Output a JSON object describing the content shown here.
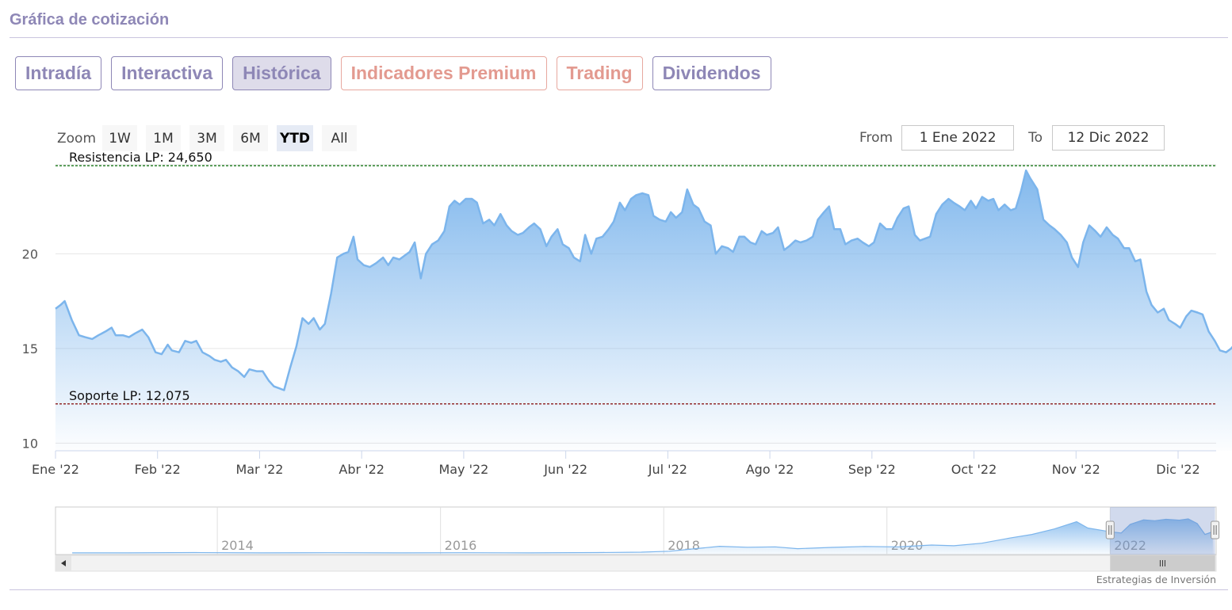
{
  "header": {
    "title": "Gráfica de cotización"
  },
  "tabs": [
    {
      "label": "Intradía",
      "state": "normal"
    },
    {
      "label": "Interactiva",
      "state": "normal"
    },
    {
      "label": "Histórica",
      "state": "active"
    },
    {
      "label": "Indicadores Premium",
      "state": "premium"
    },
    {
      "label": "Trading",
      "state": "premium"
    },
    {
      "label": "Dividendos",
      "state": "normal"
    }
  ],
  "zoom": {
    "label": "Zoom",
    "buttons": [
      "1W",
      "1M",
      "3M",
      "6M",
      "YTD",
      "All"
    ],
    "selected": "YTD"
  },
  "range": {
    "from_label": "From",
    "from_value": "1 Ene 2022",
    "to_label": "To",
    "to_value": "12 Dic 2022"
  },
  "credit": "Estrategias de Inversión",
  "colors": {
    "accent": "#8e87b6",
    "premium": "#e39a90",
    "series_line": "#7cb5ec",
    "resistance": "#1a7a1a",
    "support": "#8b1a1a"
  },
  "chart_data": {
    "type": "area",
    "x_unit": "month (0 = 1 Ene 2022)",
    "ylim": [
      9.6,
      24.7
    ],
    "yticks": [
      10,
      15,
      20
    ],
    "grid": true,
    "xtick_labels": [
      "Ene '22",
      "Feb '22",
      "Mar '22",
      "Abr '22",
      "May '22",
      "Jun '22",
      "Jul '22",
      "Ago '22",
      "Sep '22",
      "Oct '22",
      "Nov '22",
      "Dic '22"
    ],
    "reference_lines": [
      {
        "label": "Resistencia LP: 24,650",
        "value": 24.65
      },
      {
        "label": "Soporte LP: 12,075",
        "value": 12.075
      }
    ],
    "series": [
      {
        "values": [
          [
            0.0,
            17.1
          ],
          [
            0.05,
            17.3
          ],
          [
            0.09,
            17.5
          ],
          [
            0.16,
            16.5
          ],
          [
            0.23,
            15.7
          ],
          [
            0.29,
            15.6
          ],
          [
            0.36,
            15.5
          ],
          [
            0.42,
            15.7
          ],
          [
            0.49,
            15.9
          ],
          [
            0.55,
            16.1
          ],
          [
            0.59,
            15.7
          ],
          [
            0.66,
            15.7
          ],
          [
            0.72,
            15.6
          ],
          [
            0.78,
            15.8
          ],
          [
            0.85,
            16.0
          ],
          [
            0.91,
            15.6
          ],
          [
            0.98,
            14.8
          ],
          [
            1.04,
            14.7
          ],
          [
            1.1,
            15.2
          ],
          [
            1.14,
            14.9
          ],
          [
            1.21,
            14.8
          ],
          [
            1.27,
            15.4
          ],
          [
            1.33,
            15.3
          ],
          [
            1.38,
            15.4
          ],
          [
            1.44,
            14.8
          ],
          [
            1.51,
            14.6
          ],
          [
            1.56,
            14.4
          ],
          [
            1.62,
            14.3
          ],
          [
            1.67,
            14.4
          ],
          [
            1.73,
            14.0
          ],
          [
            1.79,
            13.8
          ],
          [
            1.85,
            13.5
          ],
          [
            1.9,
            13.9
          ],
          [
            1.97,
            13.8
          ],
          [
            2.03,
            13.8
          ],
          [
            2.09,
            13.3
          ],
          [
            2.14,
            13.0
          ],
          [
            2.19,
            12.9
          ],
          [
            2.24,
            12.8
          ],
          [
            2.3,
            14.0
          ],
          [
            2.36,
            15.1
          ],
          [
            2.42,
            16.6
          ],
          [
            2.48,
            16.3
          ],
          [
            2.53,
            16.6
          ],
          [
            2.59,
            16.0
          ],
          [
            2.64,
            16.3
          ],
          [
            2.7,
            17.9
          ],
          [
            2.76,
            19.8
          ],
          [
            2.82,
            20.0
          ],
          [
            2.87,
            20.1
          ],
          [
            2.92,
            20.9
          ],
          [
            2.96,
            19.7
          ],
          [
            3.02,
            19.4
          ],
          [
            3.08,
            19.3
          ],
          [
            3.14,
            19.5
          ],
          [
            3.21,
            19.8
          ],
          [
            3.26,
            19.4
          ],
          [
            3.31,
            19.8
          ],
          [
            3.37,
            19.7
          ],
          [
            3.42,
            19.9
          ],
          [
            3.47,
            20.1
          ],
          [
            3.52,
            20.6
          ],
          [
            3.58,
            18.7
          ],
          [
            3.63,
            20.0
          ],
          [
            3.69,
            20.5
          ],
          [
            3.75,
            20.7
          ],
          [
            3.81,
            21.2
          ],
          [
            3.86,
            22.5
          ],
          [
            3.91,
            22.8
          ],
          [
            3.96,
            22.6
          ],
          [
            4.02,
            22.9
          ],
          [
            4.08,
            22.9
          ],
          [
            4.13,
            22.7
          ],
          [
            4.19,
            21.6
          ],
          [
            4.25,
            21.8
          ],
          [
            4.3,
            21.5
          ],
          [
            4.36,
            22.1
          ],
          [
            4.42,
            21.5
          ],
          [
            4.47,
            21.2
          ],
          [
            4.53,
            21.0
          ],
          [
            4.58,
            21.1
          ],
          [
            4.64,
            21.4
          ],
          [
            4.69,
            21.6
          ],
          [
            4.75,
            21.3
          ],
          [
            4.81,
            20.4
          ],
          [
            4.86,
            20.9
          ],
          [
            4.92,
            21.3
          ],
          [
            4.97,
            20.5
          ],
          [
            5.03,
            20.3
          ],
          [
            5.08,
            19.8
          ],
          [
            5.14,
            19.6
          ],
          [
            5.19,
            21.0
          ],
          [
            5.25,
            20.0
          ],
          [
            5.3,
            20.8
          ],
          [
            5.36,
            20.9
          ],
          [
            5.42,
            21.3
          ],
          [
            5.47,
            21.7
          ],
          [
            5.53,
            22.7
          ],
          [
            5.58,
            22.3
          ],
          [
            5.64,
            22.9
          ],
          [
            5.69,
            23.1
          ],
          [
            5.75,
            23.2
          ],
          [
            5.81,
            23.1
          ],
          [
            5.86,
            22.0
          ],
          [
            5.92,
            21.8
          ],
          [
            5.98,
            21.7
          ],
          [
            6.03,
            22.2
          ],
          [
            6.08,
            21.9
          ],
          [
            6.14,
            22.2
          ],
          [
            6.19,
            23.4
          ],
          [
            6.25,
            22.6
          ],
          [
            6.3,
            22.4
          ],
          [
            6.36,
            21.7
          ],
          [
            6.42,
            21.5
          ],
          [
            6.47,
            20.0
          ],
          [
            6.53,
            20.4
          ],
          [
            6.59,
            20.3
          ],
          [
            6.64,
            20.1
          ],
          [
            6.7,
            20.9
          ],
          [
            6.75,
            20.9
          ],
          [
            6.81,
            20.6
          ],
          [
            6.86,
            20.5
          ],
          [
            6.92,
            21.2
          ],
          [
            6.97,
            21.0
          ],
          [
            7.03,
            21.1
          ],
          [
            7.08,
            21.4
          ],
          [
            7.14,
            20.2
          ],
          [
            7.19,
            20.4
          ],
          [
            7.25,
            20.7
          ],
          [
            7.3,
            20.6
          ],
          [
            7.36,
            20.7
          ],
          [
            7.42,
            20.9
          ],
          [
            7.47,
            21.8
          ],
          [
            7.53,
            22.2
          ],
          [
            7.58,
            22.5
          ],
          [
            7.63,
            21.3
          ],
          [
            7.69,
            21.3
          ],
          [
            7.74,
            20.5
          ],
          [
            7.8,
            20.7
          ],
          [
            7.86,
            20.8
          ],
          [
            7.91,
            20.6
          ],
          [
            7.97,
            20.4
          ],
          [
            8.02,
            20.6
          ],
          [
            8.08,
            21.6
          ],
          [
            8.14,
            21.3
          ],
          [
            8.2,
            21.3
          ],
          [
            8.25,
            21.9
          ],
          [
            8.31,
            22.4
          ],
          [
            8.36,
            22.5
          ],
          [
            8.42,
            21.0
          ],
          [
            8.47,
            20.7
          ],
          [
            8.52,
            20.8
          ],
          [
            8.57,
            20.9
          ],
          [
            8.63,
            22.1
          ],
          [
            8.69,
            22.6
          ],
          [
            8.75,
            22.9
          ],
          [
            8.8,
            22.7
          ],
          [
            8.86,
            22.5
          ],
          [
            8.91,
            22.3
          ],
          [
            8.97,
            22.8
          ],
          [
            9.02,
            22.4
          ],
          [
            9.08,
            23.0
          ],
          [
            9.14,
            22.8
          ],
          [
            9.19,
            22.9
          ],
          [
            9.24,
            22.3
          ],
          [
            9.3,
            22.6
          ],
          [
            9.36,
            22.3
          ],
          [
            9.41,
            22.4
          ],
          [
            9.46,
            23.3
          ],
          [
            9.51,
            24.4
          ],
          [
            9.55,
            24.0
          ],
          [
            9.62,
            23.4
          ],
          [
            9.68,
            21.8
          ],
          [
            9.74,
            21.5
          ],
          [
            9.79,
            21.3
          ],
          [
            9.85,
            21.0
          ],
          [
            9.91,
            20.6
          ],
          [
            9.96,
            19.8
          ],
          [
            10.02,
            19.3
          ],
          [
            10.07,
            20.6
          ],
          [
            10.13,
            21.5
          ],
          [
            10.19,
            21.2
          ],
          [
            10.24,
            20.9
          ],
          [
            10.3,
            21.4
          ],
          [
            10.36,
            21.0
          ],
          [
            10.41,
            20.8
          ],
          [
            10.47,
            20.3
          ],
          [
            10.52,
            20.3
          ],
          [
            10.58,
            19.6
          ],
          [
            10.63,
            19.7
          ],
          [
            10.69,
            18.0
          ],
          [
            10.74,
            17.3
          ],
          [
            10.8,
            16.9
          ],
          [
            10.86,
            17.1
          ],
          [
            10.91,
            16.5
          ],
          [
            10.97,
            16.3
          ],
          [
            11.02,
            16.1
          ],
          [
            11.08,
            16.7
          ],
          [
            11.13,
            17.0
          ],
          [
            11.19,
            16.9
          ],
          [
            11.24,
            16.8
          ],
          [
            11.3,
            15.9
          ],
          [
            11.36,
            15.4
          ],
          [
            11.41,
            14.9
          ],
          [
            11.47,
            14.8
          ],
          [
            11.52,
            15.0
          ],
          [
            11.58,
            15.4
          ],
          [
            11.63,
            15.5
          ],
          [
            11.69,
            15.0
          ],
          [
            11.74,
            14.9
          ],
          [
            11.8,
            14.5
          ],
          [
            11.86,
            15.2
          ],
          [
            11.91,
            15.2
          ],
          [
            11.96,
            15.5
          ],
          [
            12.02,
            15.8
          ],
          [
            12.08,
            15.9
          ],
          [
            12.13,
            16.0
          ],
          [
            12.19,
            15.3
          ],
          [
            12.24,
            15.2
          ],
          [
            12.3,
            15.3
          ],
          [
            12.35,
            15.5
          ],
          [
            12.41,
            16.0
          ],
          [
            12.47,
            15.6
          ],
          [
            12.52,
            16.8
          ],
          [
            12.58,
            16.5
          ],
          [
            12.63,
            16.6
          ],
          [
            12.69,
            17.6
          ],
          [
            12.74,
            17.2
          ],
          [
            12.8,
            16.9
          ],
          [
            12.86,
            16.8
          ],
          [
            12.91,
            16.8
          ],
          [
            12.97,
            16.9
          ],
          [
            13.02,
            17.1
          ],
          [
            13.08,
            17.3
          ],
          [
            13.13,
            17.2
          ],
          [
            13.19,
            16.9
          ],
          [
            13.24,
            16.8
          ],
          [
            13.3,
            17.1
          ],
          [
            13.35,
            17.3
          ],
          [
            13.41,
            17.0
          ],
          [
            13.46,
            17.2
          ],
          [
            13.52,
            16.9
          ],
          [
            13.57,
            16.6
          ],
          [
            13.63,
            16.7
          ],
          [
            13.68,
            17.2
          ]
        ]
      }
    ]
  },
  "navigator": {
    "year_labels": [
      "2014",
      "2016",
      "2018",
      "2020",
      "2022"
    ],
    "xlim": [
      2012.55,
      2022.95
    ],
    "ylim": [
      0,
      26
    ],
    "gridline_years": [
      2014,
      2016,
      2018,
      2020,
      2022
    ],
    "selection_years": [
      2022.0,
      2022.94
    ],
    "series": [
      [
        2012.7,
        0.9
      ],
      [
        2013.2,
        0.9
      ],
      [
        2013.8,
        1.1
      ],
      [
        2014.4,
        0.9
      ],
      [
        2015.0,
        1.0
      ],
      [
        2015.6,
        0.9
      ],
      [
        2016.2,
        1.0
      ],
      [
        2016.8,
        0.9
      ],
      [
        2017.4,
        1.1
      ],
      [
        2017.8,
        1.3
      ],
      [
        2018.05,
        1.8
      ],
      [
        2018.3,
        3.3
      ],
      [
        2018.5,
        4.5
      ],
      [
        2018.75,
        4.0
      ],
      [
        2019.0,
        4.2
      ],
      [
        2019.2,
        3.2
      ],
      [
        2019.5,
        3.9
      ],
      [
        2019.8,
        4.4
      ],
      [
        2020.1,
        4.2
      ],
      [
        2020.4,
        5.2
      ],
      [
        2020.6,
        4.8
      ],
      [
        2020.85,
        6.2
      ],
      [
        2021.1,
        9.0
      ],
      [
        2021.3,
        11.0
      ],
      [
        2021.5,
        14.0
      ],
      [
        2021.7,
        18.0
      ],
      [
        2021.8,
        14.5
      ],
      [
        2022.0,
        12.5
      ],
      [
        2022.1,
        11.8
      ],
      [
        2022.18,
        16.5
      ],
      [
        2022.3,
        19.0
      ],
      [
        2022.4,
        18.5
      ],
      [
        2022.5,
        19.3
      ],
      [
        2022.62,
        18.8
      ],
      [
        2022.7,
        19.5
      ],
      [
        2022.78,
        17.0
      ],
      [
        2022.85,
        11.0
      ],
      [
        2022.92,
        12.5
      ]
    ]
  }
}
